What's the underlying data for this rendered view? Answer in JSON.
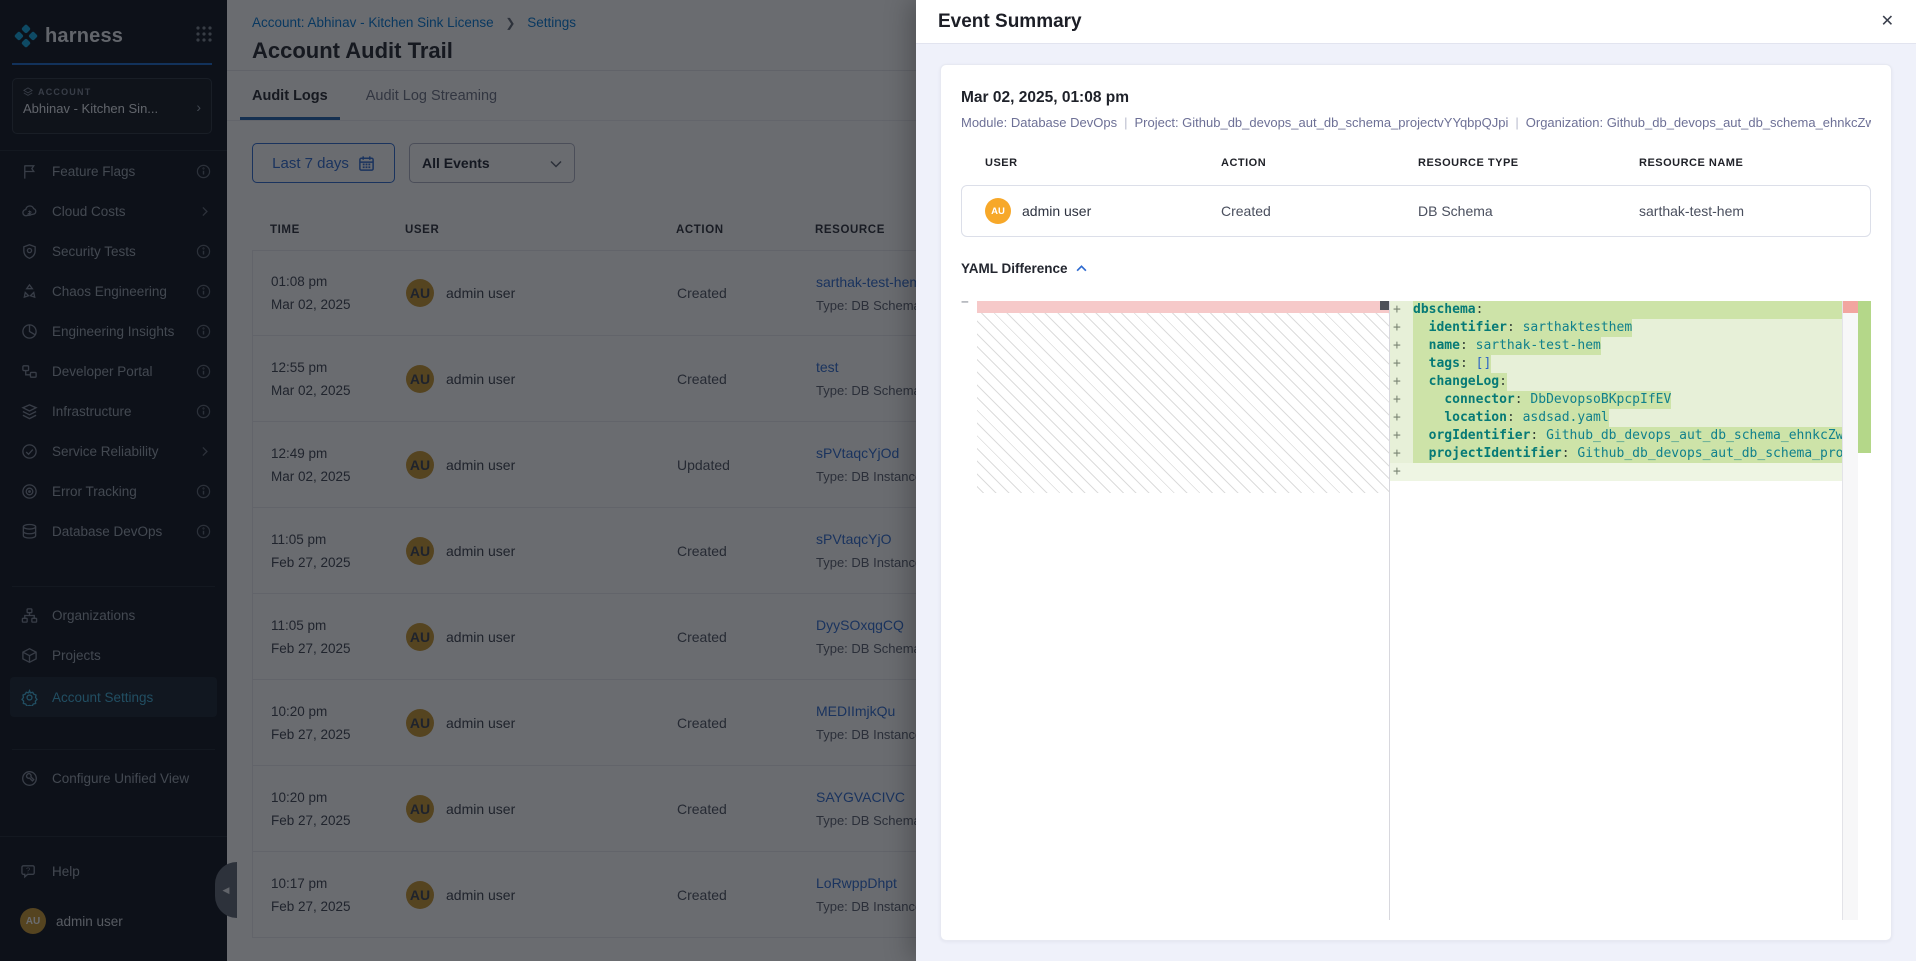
{
  "brand": {
    "name": "harness"
  },
  "sidebar": {
    "account_label": "ACCOUNT",
    "account_name": "Abhinav - Kitchen Sin...",
    "modules": [
      {
        "label": "Feature Flags",
        "icon": "flag-icon",
        "trailing": "info-icon"
      },
      {
        "label": "Cloud Costs",
        "icon": "cloud-icon",
        "trailing": "chevron-right-icon"
      },
      {
        "label": "Security Tests",
        "icon": "shield-icon",
        "trailing": "info-icon"
      },
      {
        "label": "Chaos Engineering",
        "icon": "chaos-icon",
        "trailing": "info-icon"
      },
      {
        "label": "Engineering Insights",
        "icon": "pie-icon",
        "trailing": "info-icon"
      },
      {
        "label": "Developer Portal",
        "icon": "portal-icon",
        "trailing": "info-icon"
      },
      {
        "label": "Infrastructure",
        "icon": "infra-icon",
        "trailing": "info-icon"
      },
      {
        "label": "Service Reliability",
        "icon": "reliability-icon",
        "trailing": "chevron-right-icon"
      },
      {
        "label": "Error Tracking",
        "icon": "target-icon",
        "trailing": "info-icon"
      },
      {
        "label": "Database DevOps",
        "icon": "database-icon",
        "trailing": "info-icon"
      }
    ],
    "secondary": [
      {
        "label": "Organizations",
        "icon": "org-icon",
        "active": false
      },
      {
        "label": "Projects",
        "icon": "cube-icon",
        "active": false
      },
      {
        "label": "Account Settings",
        "icon": "gear-icon",
        "active": true
      }
    ],
    "tertiary": [
      {
        "label": "Configure Unified View",
        "icon": "wrench-icon",
        "active": false
      }
    ],
    "help_label": "Help",
    "user": {
      "initials": "AU",
      "name": "admin user"
    }
  },
  "header": {
    "breadcrumb": {
      "account": "Account: Abhinav - Kitchen Sink License",
      "section": "Settings"
    },
    "title": "Account Audit Trail",
    "tabs": [
      {
        "label": "Audit Logs",
        "active": true
      },
      {
        "label": "Audit Log Streaming",
        "active": false
      }
    ]
  },
  "filters": {
    "date_range": "Last 7 days",
    "event_type": "All Events"
  },
  "audit_table": {
    "columns": [
      "TIME",
      "USER",
      "ACTION",
      "RESOURCE"
    ],
    "rows": [
      {
        "time": "01:08 pm",
        "date": "Mar 02, 2025",
        "user": "admin user",
        "initials": "AU",
        "action": "Created",
        "resource": "sarthak-test-hem",
        "resource_type": "Type: DB Schema"
      },
      {
        "time": "12:55 pm",
        "date": "Mar 02, 2025",
        "user": "admin user",
        "initials": "AU",
        "action": "Created",
        "resource": "test",
        "resource_type": "Type: DB Schema"
      },
      {
        "time": "12:49 pm",
        "date": "Mar 02, 2025",
        "user": "admin user",
        "initials": "AU",
        "action": "Updated",
        "resource": "sPVtaqcYjOd",
        "resource_type": "Type: DB Instance"
      },
      {
        "time": "11:05 pm",
        "date": "Feb 27, 2025",
        "user": "admin user",
        "initials": "AU",
        "action": "Created",
        "resource": "sPVtaqcYjO",
        "resource_type": "Type: DB Instance"
      },
      {
        "time": "11:05 pm",
        "date": "Feb 27, 2025",
        "user": "admin user",
        "initials": "AU",
        "action": "Created",
        "resource": "DyySOxqgCQ",
        "resource_type": "Type: DB Schema"
      },
      {
        "time": "10:20 pm",
        "date": "Feb 27, 2025",
        "user": "admin user",
        "initials": "AU",
        "action": "Created",
        "resource": "MEDIImjkQu",
        "resource_type": "Type: DB Instance"
      },
      {
        "time": "10:20 pm",
        "date": "Feb 27, 2025",
        "user": "admin user",
        "initials": "AU",
        "action": "Created",
        "resource": "SAYGVACIVC",
        "resource_type": "Type: DB Schema"
      },
      {
        "time": "10:17 pm",
        "date": "Feb 27, 2025",
        "user": "admin user",
        "initials": "AU",
        "action": "Created",
        "resource": "LoRwppDhpt",
        "resource_type": "Type: DB Instance"
      }
    ]
  },
  "drawer": {
    "title": "Event Summary",
    "close_glyph": "✕",
    "event_time": "Mar 02, 2025, 01:08 pm",
    "meta_parts": [
      "Module: Database DevOps",
      "Project: Github_db_devops_aut_db_schema_projectvYYqbpQJpi",
      "Organization: Github_db_devops_aut_db_schema_ehnkcZwRbI"
    ],
    "columns": [
      "USER",
      "ACTION",
      "RESOURCE TYPE",
      "RESOURCE NAME"
    ],
    "event_row": {
      "user": "admin user",
      "initials": "AU",
      "action": "Created",
      "resource_type": "DB Schema",
      "resource_name": "sarthak-test-hem"
    },
    "yaml_section_label": "YAML Difference",
    "diff": {
      "add_marker": "+",
      "remove_marker": "−",
      "added_lines": [
        {
          "indent": 0,
          "key": "dbschema",
          "value": null,
          "kind": "plain",
          "full": true
        },
        {
          "indent": 2,
          "key": "identifier",
          "value": "sarthaktesthem",
          "kind": "plain"
        },
        {
          "indent": 2,
          "key": "name",
          "value": "sarthak-test-hem",
          "kind": "plain"
        },
        {
          "indent": 2,
          "key": "tags",
          "value": "[]",
          "kind": "bracket"
        },
        {
          "indent": 2,
          "key": "changeLog",
          "value": null,
          "kind": "plain"
        },
        {
          "indent": 4,
          "key": "connector",
          "value": "DbDevopsoBKpcpIfEV",
          "kind": "plain"
        },
        {
          "indent": 4,
          "key": "location",
          "value": "asdsad.yaml",
          "kind": "plain"
        },
        {
          "indent": 2,
          "key": "orgIdentifier",
          "value": "Github_db_devops_aut_db_schema_ehnkcZwRbI",
          "kind": "plain"
        },
        {
          "indent": 2,
          "key": "projectIdentifier",
          "value": "Github_db_devops_aut_db_schema_projectvYYqbpQJpi",
          "kind": "plain"
        },
        {
          "indent": 0,
          "key": null,
          "value": null,
          "kind": "empty"
        }
      ]
    }
  },
  "colors": {
    "primary_blue": "#0278d5",
    "link_blue": "#2f6bd0",
    "sidebar_bg": "#0b111b",
    "active_nav": "#3fb0da",
    "avatar_orange": "#f7a829",
    "diff_added_line_bg": "#e7f0d8",
    "diff_added_text_bg": "#cde3a8",
    "diff_removed_bg": "#f6c9c9",
    "yaml_key": "#067a76",
    "yaml_value": "#11808c",
    "drawer_bg": "#eff1fa"
  }
}
